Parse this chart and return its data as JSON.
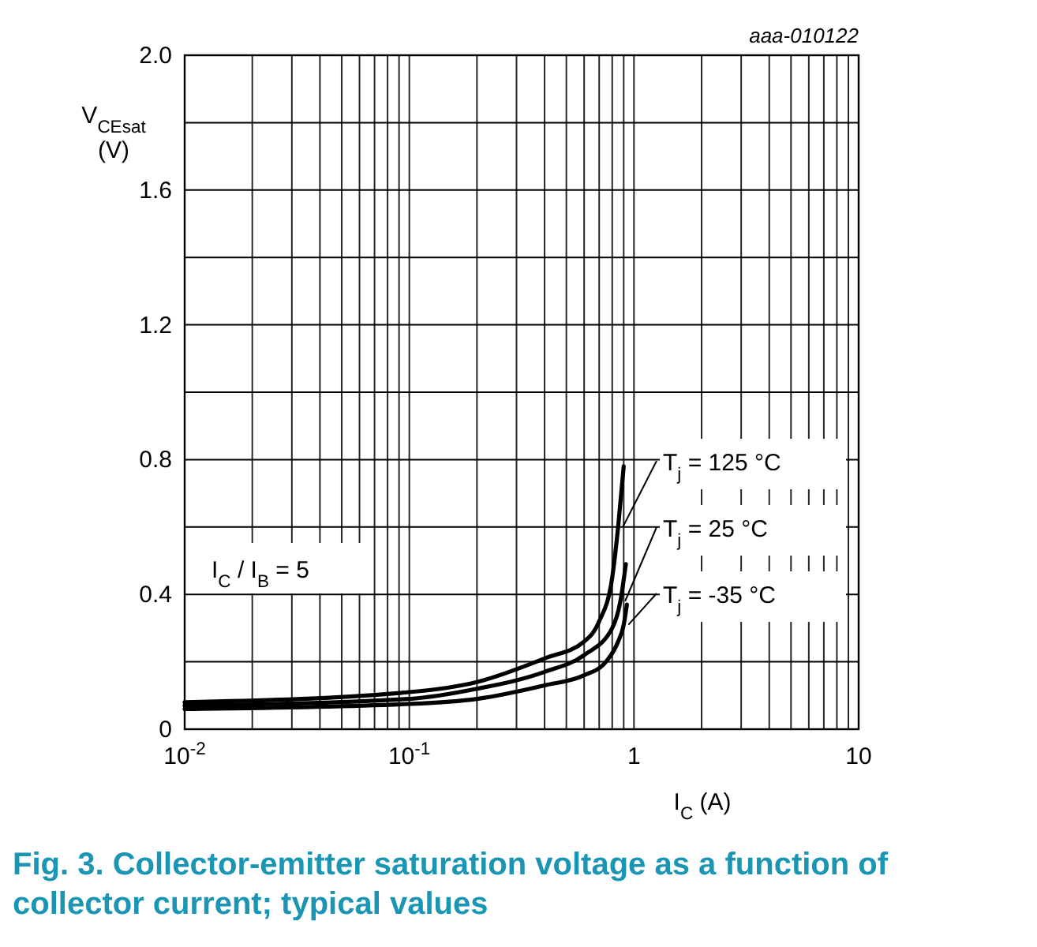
{
  "chart_data": {
    "type": "line",
    "title": "Fig. 3. Collector-emitter saturation voltage as a function of collector current; typical values",
    "xlabel": "I$_{C}$ (A)",
    "ylabel": "V$_{CEsat}$ (V)",
    "log": "x",
    "grid": true,
    "legend": "right",
    "marker": "none",
    "line_style": "solid",
    "xlim": [
      0.01,
      10
    ],
    "xticks": [
      {
        "value": 0.01,
        "label": "10$^{-2}$"
      },
      {
        "value": 0.1,
        "label": "10$^{-1}$"
      },
      1,
      10
    ],
    "ylim": [
      0,
      2.0
    ],
    "yticks": [
      0,
      {
        "value": 0.2,
        "label": null
      },
      0.4,
      {
        "value": 0.6,
        "label": null
      },
      0.8,
      {
        "value": 1.0,
        "label": null
      },
      1.2,
      {
        "value": 1.4,
        "label": null
      },
      1.6,
      {
        "value": 1.8,
        "label": null
      },
      {
        "value": 2.0,
        "label": "2.0"
      }
    ],
    "annotations": [
      "aaa-010122",
      {
        "text": "I$_{C}$ / I$_{B}$ = 5"
      }
    ],
    "series": [
      {
        "name": "T$_{j}$ = 125 °C",
        "color": "#000000",
        "x": [
          0.01,
          0.1,
          0.2,
          0.4,
          0.6,
          0.7,
          0.8,
          0.85,
          0.9
        ],
        "values": [
          0.08,
          0.11,
          0.14,
          0.21,
          0.26,
          0.32,
          0.45,
          0.6,
          0.78
        ]
      },
      {
        "name": "T$_{j}$ = 25 °C",
        "color": "#000000",
        "x": [
          0.01,
          0.1,
          0.2,
          0.4,
          0.6,
          0.8,
          0.87,
          0.92
        ],
        "values": [
          0.07,
          0.09,
          0.12,
          0.17,
          0.22,
          0.3,
          0.38,
          0.49
        ]
      },
      {
        "name": "T$_{j}$ = -35 °C",
        "color": "#000000",
        "x": [
          0.01,
          0.1,
          0.2,
          0.4,
          0.6,
          0.75,
          0.85,
          0.9,
          0.93
        ],
        "values": [
          0.06,
          0.075,
          0.09,
          0.13,
          0.16,
          0.2,
          0.26,
          0.31,
          0.37
        ]
      }
    ]
  }
}
